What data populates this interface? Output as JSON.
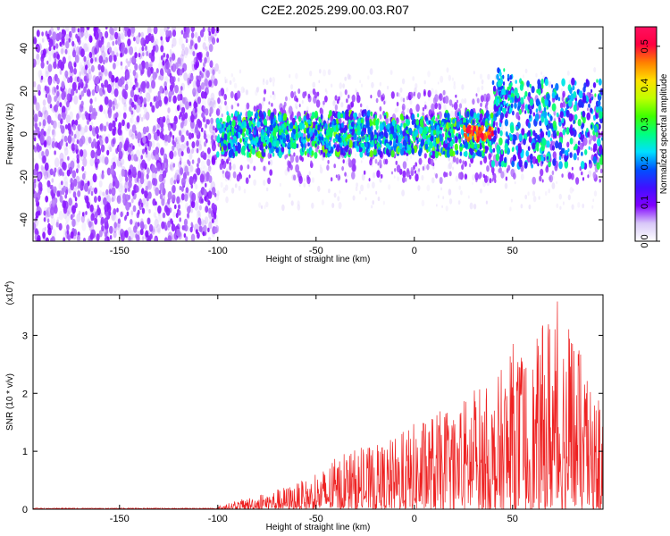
{
  "title": "C2E2.2025.299.00.03.R07",
  "chart_data": [
    {
      "type": "heatmap",
      "name": "spectrogram",
      "xlabel": "Height of straight line (km)",
      "ylabel": "Frequency (Hz)",
      "xlim": [
        -194,
        96
      ],
      "ylim": [
        -50,
        50
      ],
      "xticks": [
        -150,
        -100,
        -50,
        0,
        50
      ],
      "yticks": [
        -40,
        -20,
        0,
        20,
        40
      ],
      "colorbar": {
        "label": "Normalized spectral amplitude",
        "range": [
          0.0,
          0.55
        ],
        "ticks": [
          "0.0",
          "0.1",
          "0.2",
          "0.3",
          "0.4",
          "0.5"
        ],
        "tick_values": [
          0.0,
          0.1,
          0.2,
          0.3,
          0.4,
          0.5
        ],
        "colors": [
          "#ffffff",
          "#d8c8f8",
          "#8000ff",
          "#4010ff",
          "#0050ff",
          "#00e0ff",
          "#00ff80",
          "#40ff00",
          "#c0ff00",
          "#ffe000",
          "#ff8000",
          "#ff0040",
          "#ff1060"
        ]
      },
      "description_regions": [
        {
          "x_range": [
            -194,
            -100
          ],
          "freq_range": [
            -50,
            50
          ],
          "amplitude": [
            0.02,
            0.08
          ]
        },
        {
          "x_range": [
            -100,
            40
          ],
          "freq_range": [
            -10,
            10
          ],
          "amplitude": [
            0.1,
            0.35
          ]
        },
        {
          "x_range": [
            25,
            40
          ],
          "freq_range": [
            -3,
            3
          ],
          "amplitude": [
            0.4,
            0.55
          ]
        },
        {
          "x_range": [
            40,
            96
          ],
          "freq_range": [
            -15,
            25
          ],
          "amplitude": [
            0.1,
            0.3
          ]
        }
      ]
    },
    {
      "type": "line",
      "name": "snr",
      "xlabel": "Height of straight line (km)",
      "ylabel": "SNR (10 * v/v)",
      "scale_label": "(x10",
      "scale_exp": "4",
      "xlim": [
        -194,
        96
      ],
      "ylim": [
        0,
        3.7
      ],
      "xticks": [
        -150,
        -100,
        -50,
        0,
        50
      ],
      "yticks": [
        0,
        1,
        2,
        3
      ],
      "color": "#ee2222",
      "envelope": [
        {
          "x": -194,
          "peak": 0.03
        },
        {
          "x": -100,
          "peak": 0.05
        },
        {
          "x": -90,
          "peak": 0.15
        },
        {
          "x": -75,
          "peak": 0.3
        },
        {
          "x": -60,
          "peak": 0.45
        },
        {
          "x": -50,
          "peak": 0.6
        },
        {
          "x": -40,
          "peak": 0.9
        },
        {
          "x": -30,
          "peak": 1.05
        },
        {
          "x": -20,
          "peak": 1.1
        },
        {
          "x": -10,
          "peak": 1.25
        },
        {
          "x": 0,
          "peak": 1.5
        },
        {
          "x": 10,
          "peak": 1.7
        },
        {
          "x": 20,
          "peak": 1.7
        },
        {
          "x": 30,
          "peak": 2.2
        },
        {
          "x": 40,
          "peak": 2.1
        },
        {
          "x": 50,
          "peak": 2.9
        },
        {
          "x": 60,
          "peak": 2.7
        },
        {
          "x": 70,
          "peak": 3.7
        },
        {
          "x": 80,
          "peak": 3.3
        },
        {
          "x": 90,
          "peak": 2.0
        },
        {
          "x": 96,
          "peak": 1.8
        }
      ]
    }
  ]
}
